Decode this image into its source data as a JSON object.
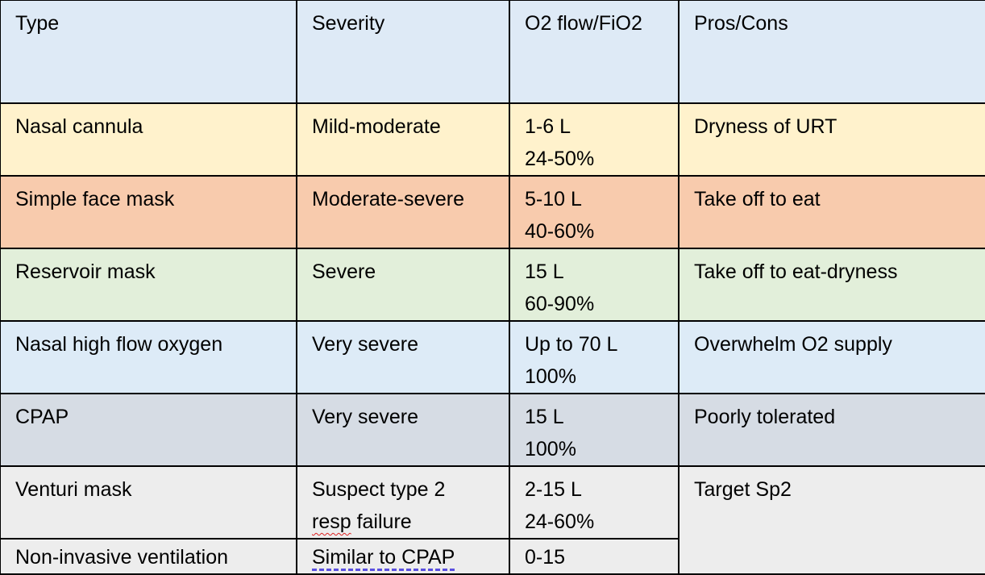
{
  "colors": {
    "header": "#DEEAF6",
    "nasal_cannula": "#FFF2CC",
    "simple_face_mask": "#F8CBAD",
    "reservoir_mask": "#E2EFDA",
    "nasal_high_flow": "#DDEBF7",
    "cpap": "#D6DCE4",
    "venturi_niv": "#EDEDED"
  },
  "header": [
    "Type",
    "Severity",
    "O2 flow/FiO2",
    "Pros/Cons"
  ],
  "rows": [
    {
      "type": "Nasal cannula",
      "severity": [
        "Mild-moderate"
      ],
      "flow": [
        "1-6 L",
        "24-50%"
      ],
      "pros_cons": "Dryness of URT"
    },
    {
      "type": "Simple face mask",
      "severity": [
        "Moderate-severe"
      ],
      "flow": [
        "5-10 L",
        "40-60%"
      ],
      "pros_cons": "Take off to eat"
    },
    {
      "type": "Reservoir mask",
      "severity": [
        "Severe"
      ],
      "flow": [
        "15 L",
        "60-90%"
      ],
      "pros_cons": "Take off to eat-dryness"
    },
    {
      "type": "Nasal high flow oxygen",
      "severity": [
        "Very severe"
      ],
      "flow": [
        "Up to 70 L",
        "100%"
      ],
      "pros_cons": "Overwhelm O2 supply"
    },
    {
      "type": "CPAP",
      "severity": [
        "Very severe"
      ],
      "flow": [
        "15 L",
        "100%"
      ],
      "pros_cons": "Poorly tolerated"
    },
    {
      "type": "Venturi mask",
      "severity": [
        "Suspect type 2",
        "resp failure"
      ],
      "flow": [
        "2-15 L",
        "24-60%"
      ],
      "pros_cons": "Target Sp2"
    },
    {
      "type": "Non-invasive ventilation",
      "severity": [
        "Similar to CPAP"
      ],
      "flow": [
        "0-15"
      ]
    }
  ]
}
